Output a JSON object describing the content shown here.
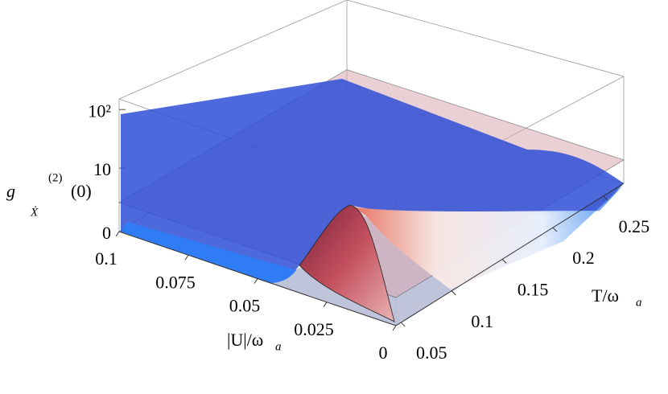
{
  "chart_data": {
    "type": "surface3d",
    "xlabel": "|U|/ω",
    "xlabel_sub": "a",
    "ylabel": "T/ω",
    "ylabel_sub": "a",
    "zlabel": "g",
    "zlabel_sub": "Ẋ",
    "zlabel_sup": "(2)",
    "zlabel_tail": "(0)",
    "xlim": [
      0,
      0.1
    ],
    "xticks": [
      0,
      0.025,
      0.05,
      0.075,
      0.1
    ],
    "ylim": [
      0.045,
      0.27
    ],
    "yticks": [
      0.05,
      0.1,
      0.15,
      0.2,
      0.25
    ],
    "zlim": [
      0,
      150
    ],
    "zscale": "log1p",
    "zticks": [
      0,
      10,
      {
        "value": 100,
        "label": "10²"
      }
    ],
    "reference_plane": {
      "value": 2,
      "color": "#d9a9b3"
    }
  }
}
